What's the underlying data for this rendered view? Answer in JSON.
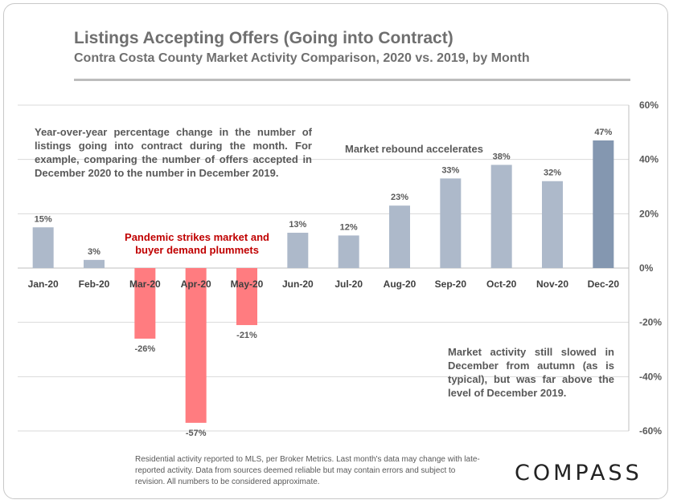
{
  "header": {
    "title": "Listings Accepting Offers (Going into Contract)",
    "subtitle": "Contra Costa County Market Activity Comparison, 2020 vs. 2019, by Month"
  },
  "notes": {
    "intro": "Year-over-year percentage change in the number of listings going into contract during the month. For example, comparing the number of offers accepted in December 2020 to the number in December 2019.",
    "slowed": "Market activity still slowed in December from autumn (as is typical), but was far above the level of December 2019."
  },
  "annotations": {
    "pandemic": "Pandemic strikes market and buyer demand plummets",
    "rebound": "Market rebound accelerates"
  },
  "footer": "Residential activity reported to MLS, per Broker Metrics. Last month's data may change with late-reported activity. Data from sources deemed reliable but may contain errors and subject to revision. All numbers to be considered approximate.",
  "logo": "COMPASS",
  "chart_data": {
    "type": "bar",
    "categories": [
      "Jan-20",
      "Feb-20",
      "Mar-20",
      "Apr-20",
      "May-20",
      "Jun-20",
      "Jul-20",
      "Aug-20",
      "Sep-20",
      "Oct-20",
      "Nov-20",
      "Dec-20"
    ],
    "values": [
      15,
      3,
      -26,
      -57,
      -21,
      13,
      12,
      23,
      33,
      38,
      32,
      47
    ],
    "data_labels": [
      "15%",
      "3%",
      "-26%",
      "-57%",
      "-21%",
      "13%",
      "12%",
      "23%",
      "33%",
      "38%",
      "32%",
      "47%"
    ],
    "ylim": [
      -60,
      60
    ],
    "yticks": [
      60,
      40,
      20,
      0,
      -20,
      -40,
      -60
    ],
    "ytick_labels": [
      "60%",
      "40%",
      "20%",
      "0%",
      "-20%",
      "-40%",
      "-60%"
    ],
    "y_axis_position": "right",
    "grid": true,
    "colors": {
      "positive": "#adb9ca",
      "negative": "#ff7c80",
      "highlight": "#8497b0"
    },
    "highlight_index": 11
  }
}
